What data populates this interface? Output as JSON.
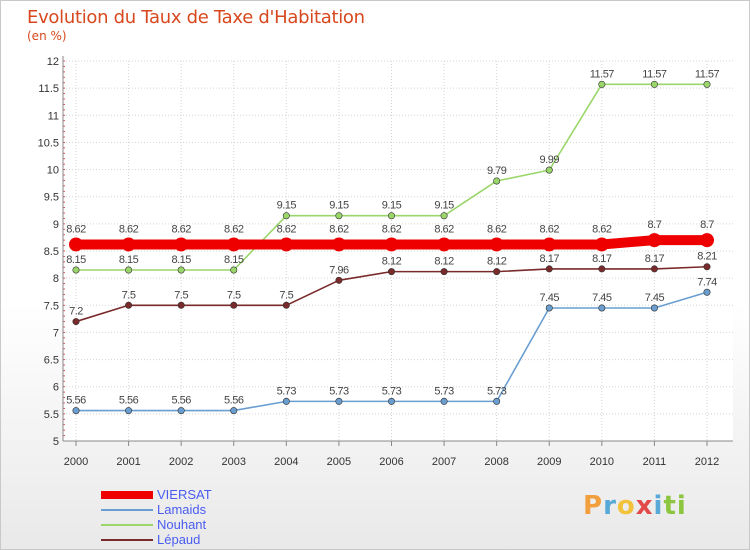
{
  "header": {
    "title": "Evolution du Taux de Taxe d'Habitation",
    "subtitle": "(en %)"
  },
  "logo": {
    "letters": [
      "P",
      "r",
      "o",
      "x",
      "i",
      "ti"
    ]
  },
  "chart_data": {
    "type": "line",
    "title": "Evolution du Taux de Taxe d'Habitation",
    "ylabel": "(en %)",
    "xlabel": "",
    "x": [
      "2000",
      "2001",
      "2002",
      "2003",
      "2004",
      "2005",
      "2006",
      "2007",
      "2008",
      "2009",
      "2010",
      "2011",
      "2012"
    ],
    "ylim": [
      5,
      12
    ],
    "yticks": [
      "5",
      "5.5",
      "6",
      "6.5",
      "7",
      "7.5",
      "8",
      "8.5",
      "9",
      "9.5",
      "10",
      "10.5",
      "11",
      "11.5",
      "12"
    ],
    "grid": true,
    "legend_position": "bottom-left",
    "series": [
      {
        "name": "VIERSAT",
        "color": "#ee0000",
        "values": [
          8.62,
          8.62,
          8.62,
          8.62,
          8.62,
          8.62,
          8.62,
          8.62,
          8.62,
          8.62,
          8.62,
          8.7,
          8.7
        ]
      },
      {
        "name": "Lamaids",
        "color": "#6a9ed0",
        "values": [
          5.56,
          5.56,
          5.56,
          5.56,
          5.73,
          5.73,
          5.73,
          5.73,
          5.73,
          7.45,
          7.45,
          7.45,
          7.74
        ]
      },
      {
        "name": "Nouhant",
        "color": "#9ad66a",
        "values": [
          8.15,
          8.15,
          8.15,
          8.15,
          9.15,
          9.15,
          9.15,
          9.15,
          9.79,
          9.99,
          11.57,
          11.57,
          11.57
        ]
      },
      {
        "name": "Lépaud",
        "color": "#7a2a2a",
        "values": [
          7.2,
          7.5,
          7.5,
          7.5,
          7.5,
          7.96,
          8.12,
          8.12,
          8.12,
          8.17,
          8.17,
          8.17,
          8.21
        ]
      }
    ]
  }
}
